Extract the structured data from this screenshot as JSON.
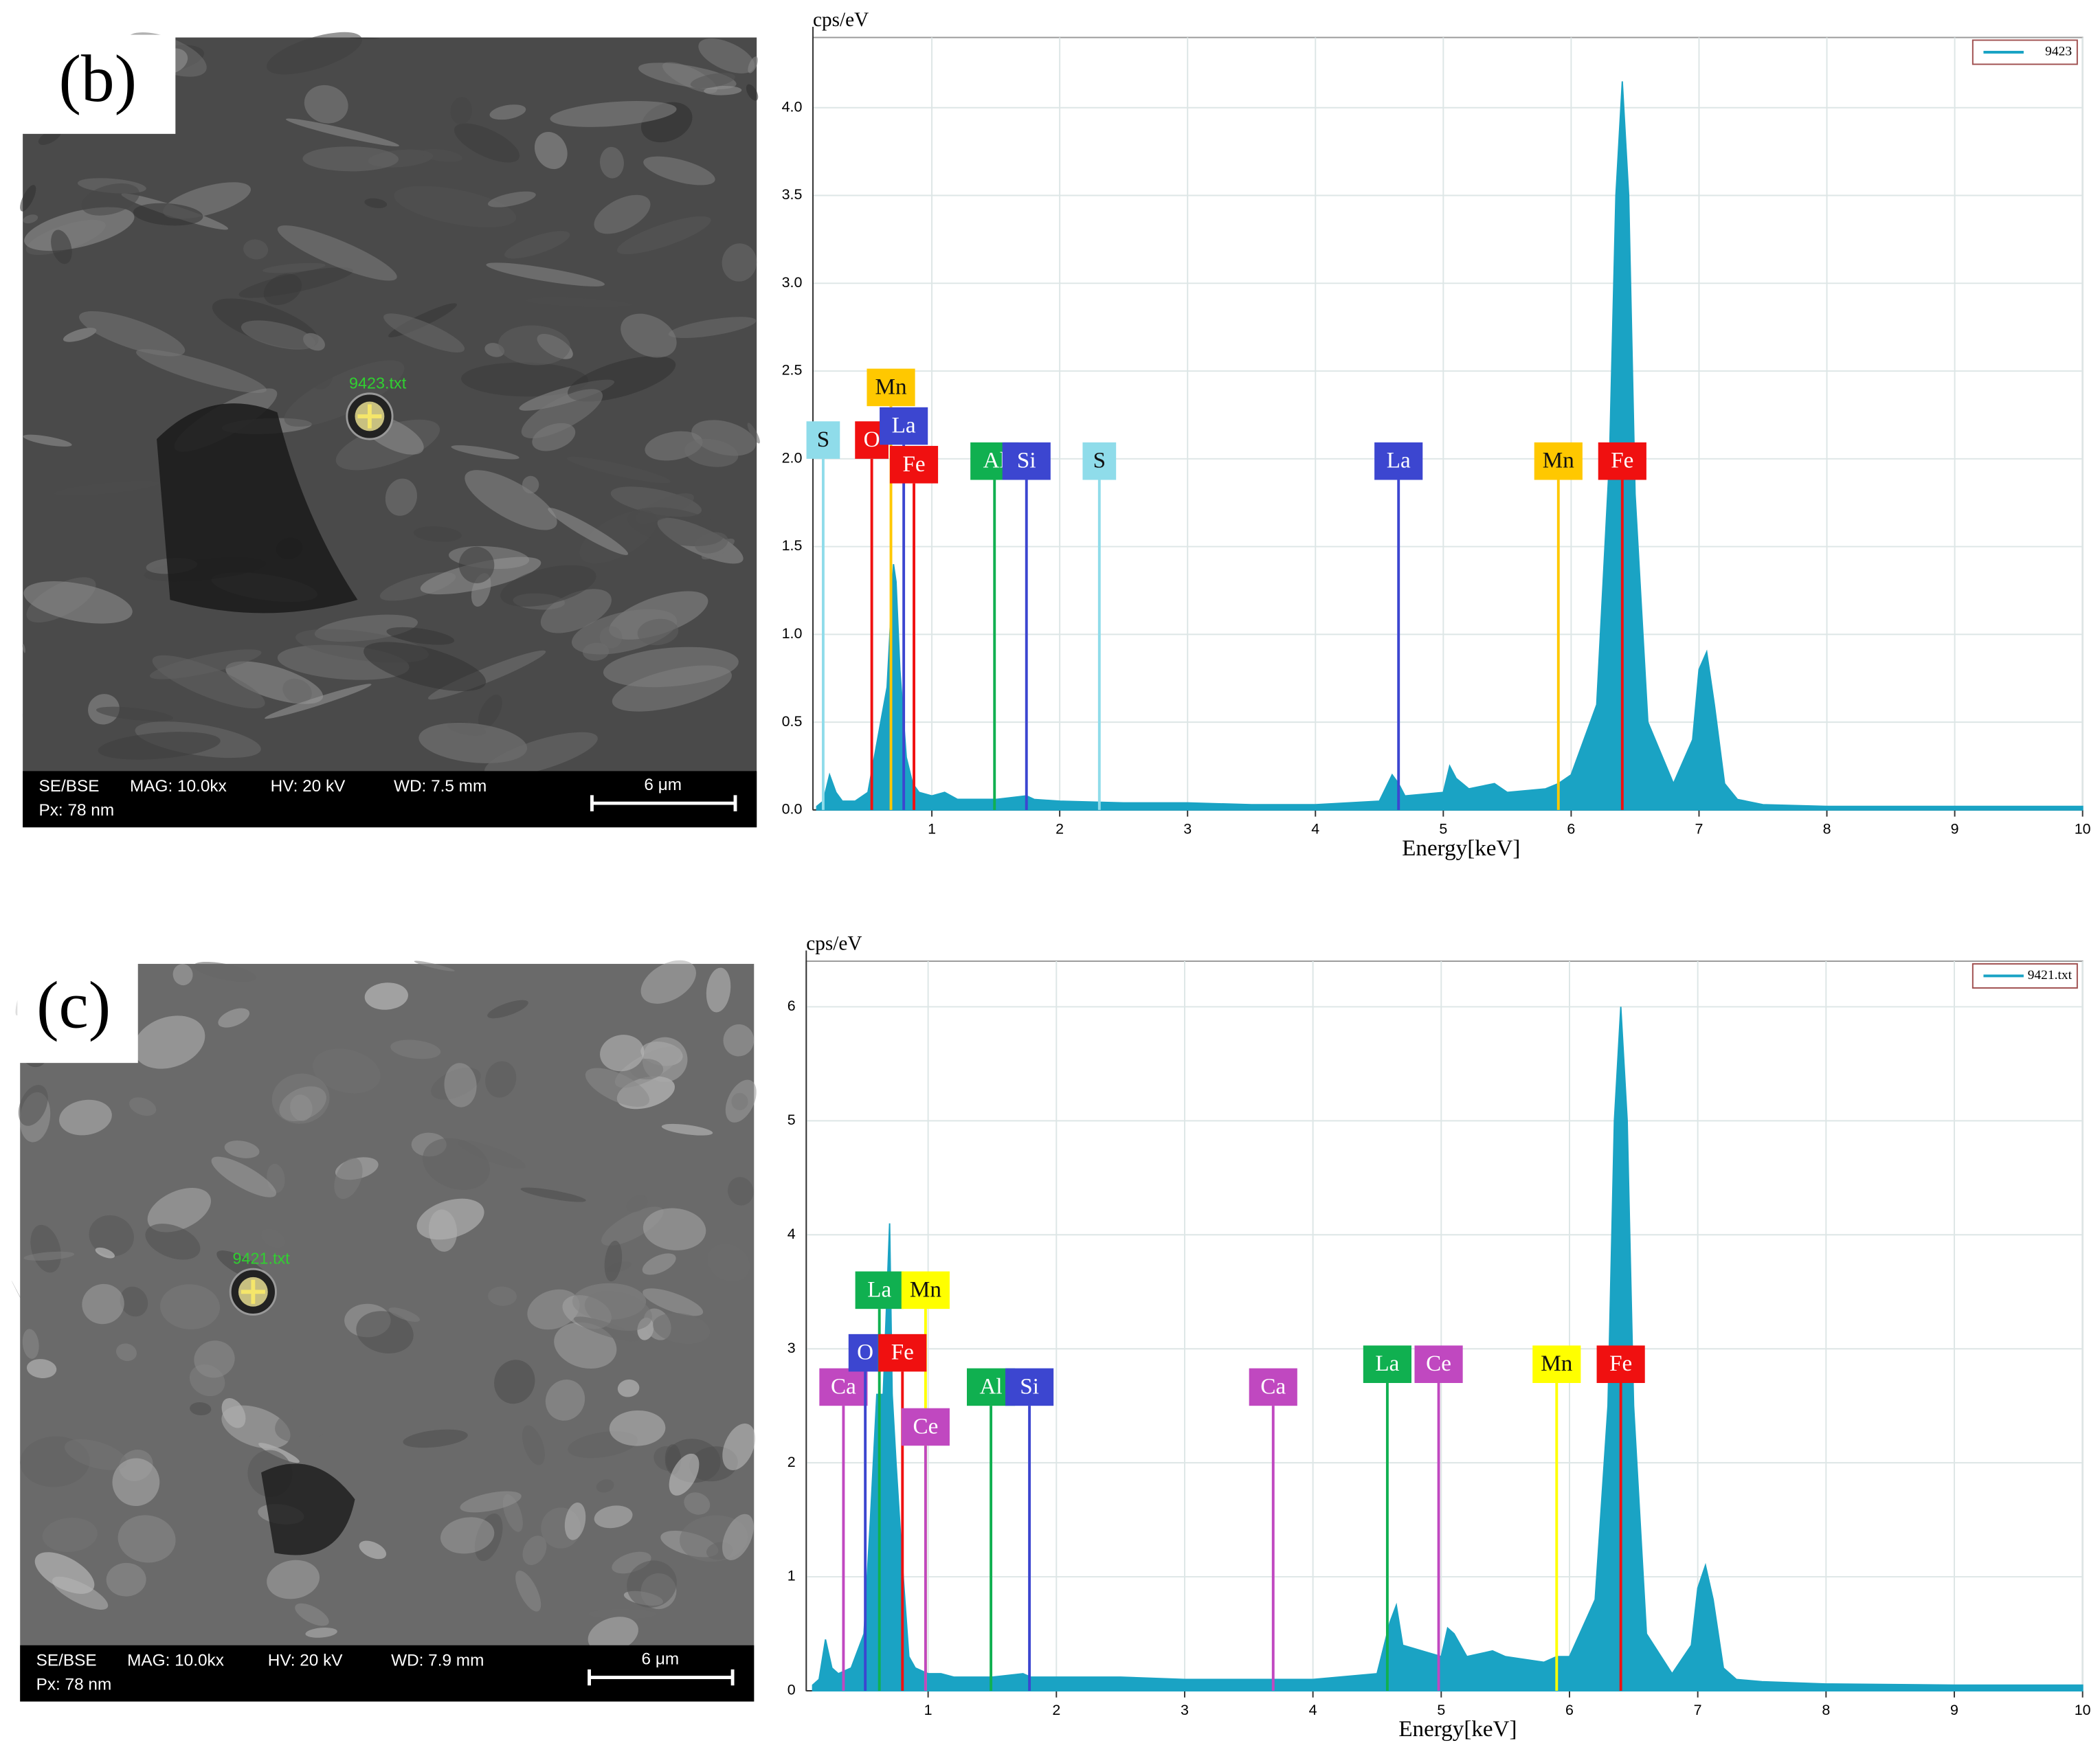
{
  "panels": [
    {
      "label": "(b)",
      "spot": "9423.txt",
      "info": [
        "SE/BSE",
        "MAG: 10.0kx",
        "HV: 20 kV",
        "WD: 7.5 mm"
      ],
      "pixel": "Px: 78 nm",
      "scale_bar": "6 μm"
    },
    {
      "label": "(c)",
      "spot": "9421.txt",
      "info": [
        "SE/BSE",
        "MAG: 10.0kx",
        "HV: 20 kV",
        "WD: 7.9 mm"
      ],
      "pixel": "Px: 78 nm",
      "scale_bar": "6 μm"
    }
  ],
  "chart_data": [
    {
      "type": "area",
      "xlabel": "Energy[keV]",
      "ylabel": "cps/eV",
      "x": [
        0.1,
        0.15,
        0.2,
        0.25,
        0.3,
        0.4,
        0.5,
        0.55,
        0.6,
        0.65,
        0.7,
        0.72,
        0.75,
        0.8,
        0.85,
        0.9,
        1.0,
        1.1,
        1.2,
        1.5,
        1.74,
        1.8,
        2.0,
        2.5,
        3.0,
        3.5,
        4.0,
        4.5,
        4.6,
        4.65,
        4.7,
        5.0,
        5.05,
        5.1,
        5.2,
        5.4,
        5.5,
        5.8,
        5.9,
        6.0,
        6.2,
        6.3,
        6.35,
        6.4,
        6.45,
        6.5,
        6.6,
        6.8,
        6.95,
        7.0,
        7.06,
        7.12,
        7.2,
        7.3,
        7.5,
        8.0,
        9.0,
        10.0
      ],
      "series": [
        {
          "name": "9423",
          "color": "#1aa3c4",
          "values": [
            0.02,
            0.05,
            0.2,
            0.1,
            0.05,
            0.05,
            0.1,
            0.3,
            0.5,
            0.7,
            1.4,
            1.3,
            0.8,
            0.3,
            0.15,
            0.1,
            0.08,
            0.1,
            0.06,
            0.06,
            0.08,
            0.06,
            0.05,
            0.04,
            0.04,
            0.03,
            0.03,
            0.05,
            0.2,
            0.15,
            0.08,
            0.1,
            0.25,
            0.18,
            0.12,
            0.15,
            0.1,
            0.12,
            0.15,
            0.2,
            0.6,
            2.0,
            3.5,
            4.15,
            3.5,
            1.8,
            0.5,
            0.15,
            0.4,
            0.8,
            0.9,
            0.6,
            0.15,
            0.06,
            0.03,
            0.02,
            0.02,
            0.02
          ]
        }
      ],
      "xlim": [
        0.07,
        10
      ],
      "xticks": [
        1,
        2,
        3,
        4,
        5,
        6,
        7,
        8,
        9,
        10
      ],
      "ylim": [
        0,
        4.4
      ],
      "yticks": [
        {
          "value": 0,
          "label": "0.0"
        },
        0.5,
        {
          "value": 1,
          "label": "1.0"
        },
        1.5,
        {
          "value": 2,
          "label": "2.0"
        },
        2.5,
        {
          "value": 3,
          "label": "3.0"
        },
        3.5,
        {
          "value": 4,
          "label": "4.0"
        }
      ],
      "grid": true,
      "legend": "top-right",
      "annotations": [
        {
          "text": "S",
          "x": 0.15,
          "y": 2.0,
          "color": "#8fdcea"
        },
        {
          "text": "O",
          "x": 0.53,
          "y": 2.0,
          "color": "#f01010"
        },
        {
          "text": "Mn",
          "x": 0.68,
          "y": 2.3,
          "color": "#ffc800"
        },
        {
          "text": "La",
          "x": 0.78,
          "y": 2.08,
          "color": "#3c46d0"
        },
        {
          "text": "Fe",
          "x": 0.86,
          "y": 1.86,
          "color": "#f01010"
        },
        {
          "text": "Al",
          "x": 1.49,
          "y": 1.88,
          "color": "#10b050"
        },
        {
          "text": "Si",
          "x": 1.74,
          "y": 1.88,
          "color": "#3c46d0"
        },
        {
          "text": "S",
          "x": 2.31,
          "y": 1.88,
          "color": "#8fdcea"
        },
        {
          "text": "La",
          "x": 4.65,
          "y": 1.88,
          "color": "#3c46d0"
        },
        {
          "text": "Mn",
          "x": 5.9,
          "y": 1.88,
          "color": "#ffc800"
        },
        {
          "text": "Fe",
          "x": 6.4,
          "y": 1.88,
          "color": "#f01010"
        }
      ]
    },
    {
      "type": "area",
      "xlabel": "Energy[keV]",
      "ylabel": "cps/eV",
      "x": [
        0.1,
        0.15,
        0.2,
        0.25,
        0.3,
        0.4,
        0.5,
        0.55,
        0.6,
        0.65,
        0.7,
        0.72,
        0.75,
        0.8,
        0.85,
        0.9,
        1.0,
        1.1,
        1.2,
        1.5,
        1.74,
        1.8,
        2.0,
        2.5,
        3.0,
        3.5,
        4.0,
        4.5,
        4.6,
        4.65,
        4.7,
        5.0,
        5.05,
        5.1,
        5.2,
        5.4,
        5.5,
        5.8,
        5.9,
        6.0,
        6.2,
        6.3,
        6.35,
        6.4,
        6.45,
        6.5,
        6.6,
        6.8,
        6.95,
        7.0,
        7.06,
        7.12,
        7.2,
        7.3,
        7.5,
        8.0,
        9.0,
        10.0
      ],
      "series": [
        {
          "name": "9421.txt",
          "color": "#1aa3c4",
          "values": [
            0.05,
            0.1,
            0.45,
            0.2,
            0.15,
            0.2,
            0.5,
            1.5,
            2.6,
            2.6,
            4.1,
            2.6,
            2.0,
            1.1,
            0.3,
            0.2,
            0.15,
            0.15,
            0.12,
            0.12,
            0.15,
            0.12,
            0.12,
            0.12,
            0.1,
            0.1,
            0.1,
            0.15,
            0.6,
            0.75,
            0.4,
            0.3,
            0.55,
            0.5,
            0.3,
            0.35,
            0.3,
            0.25,
            0.3,
            0.3,
            0.8,
            2.5,
            5.0,
            6.0,
            5.0,
            2.5,
            0.5,
            0.15,
            0.4,
            0.9,
            1.1,
            0.8,
            0.2,
            0.1,
            0.08,
            0.06,
            0.05,
            0.05
          ]
        }
      ],
      "xlim": [
        0.05,
        10
      ],
      "xticks": [
        1,
        2,
        3,
        4,
        5,
        6,
        7,
        8,
        9,
        10
      ],
      "ylim": [
        0,
        6.4
      ],
      "yticks": [
        0,
        1,
        2,
        3,
        4,
        5,
        6
      ],
      "grid": true,
      "legend": "top-right",
      "annotations": [
        {
          "text": "Ca",
          "x": 0.34,
          "y": 2.5,
          "color": "#c048c0"
        },
        {
          "text": "O",
          "x": 0.51,
          "y": 2.8,
          "color": "#3c46d0"
        },
        {
          "text": "La",
          "x": 0.62,
          "y": 3.35,
          "color": "#10b050"
        },
        {
          "text": "Mn",
          "x": 0.98,
          "y": 3.35,
          "color": "#ffff00"
        },
        {
          "text": "Fe",
          "x": 0.8,
          "y": 2.8,
          "color": "#f01010"
        },
        {
          "text": "Ce",
          "x": 0.98,
          "y": 2.15,
          "color": "#c048c0"
        },
        {
          "text": "Al",
          "x": 1.49,
          "y": 2.5,
          "color": "#10b050"
        },
        {
          "text": "Si",
          "x": 1.79,
          "y": 2.5,
          "color": "#3c46d0"
        },
        {
          "text": "Ca",
          "x": 3.69,
          "y": 2.5,
          "color": "#c048c0"
        },
        {
          "text": "La",
          "x": 4.58,
          "y": 2.7,
          "color": "#10b050"
        },
        {
          "text": "Ce",
          "x": 4.98,
          "y": 2.7,
          "color": "#c048c0"
        },
        {
          "text": "Mn",
          "x": 5.9,
          "y": 2.7,
          "color": "#ffff00"
        },
        {
          "text": "Fe",
          "x": 6.4,
          "y": 2.7,
          "color": "#f01010"
        }
      ]
    }
  ]
}
